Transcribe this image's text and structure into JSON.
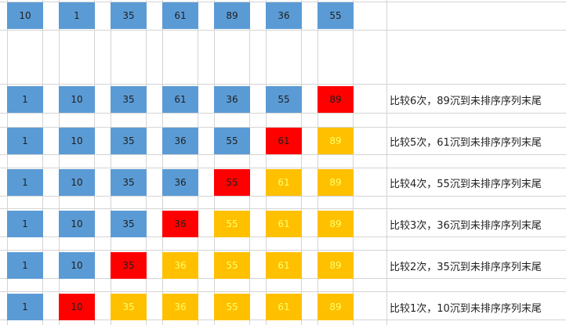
{
  "colors": {
    "unsorted": "#5b9bd5",
    "sinking": "#ff0000",
    "sorted": "#ffc000",
    "sorted_text": "#ffff66"
  },
  "initial_row": [
    "10",
    "1",
    "35",
    "61",
    "89",
    "36",
    "55"
  ],
  "passes": [
    {
      "values": [
        "1",
        "10",
        "35",
        "61",
        "36",
        "55",
        "89"
      ],
      "states": [
        "u",
        "u",
        "u",
        "u",
        "u",
        "u",
        "s"
      ],
      "description": "比较6次，89沉到未排序序列末尾"
    },
    {
      "values": [
        "1",
        "10",
        "35",
        "36",
        "55",
        "61",
        "89"
      ],
      "states": [
        "u",
        "u",
        "u",
        "u",
        "u",
        "s",
        "d"
      ],
      "description": "比较5次，61沉到未排序序列末尾"
    },
    {
      "values": [
        "1",
        "10",
        "35",
        "36",
        "55",
        "61",
        "89"
      ],
      "states": [
        "u",
        "u",
        "u",
        "u",
        "s",
        "d",
        "d"
      ],
      "description": "比较4次，55沉到未排序序列末尾"
    },
    {
      "values": [
        "1",
        "10",
        "35",
        "36",
        "55",
        "61",
        "89"
      ],
      "states": [
        "u",
        "u",
        "u",
        "s",
        "d",
        "d",
        "d"
      ],
      "description": "比较3次，36沉到未排序序列末尾"
    },
    {
      "values": [
        "1",
        "10",
        "35",
        "36",
        "55",
        "61",
        "89"
      ],
      "states": [
        "u",
        "u",
        "s",
        "d",
        "d",
        "d",
        "d"
      ],
      "description": "比较2次，35沉到未排序序列末尾"
    },
    {
      "values": [
        "1",
        "10",
        "35",
        "36",
        "55",
        "61",
        "89"
      ],
      "states": [
        "u",
        "s",
        "d",
        "d",
        "d",
        "d",
        "d"
      ],
      "description": "比较1次，10沉到未排序序列末尾"
    }
  ]
}
